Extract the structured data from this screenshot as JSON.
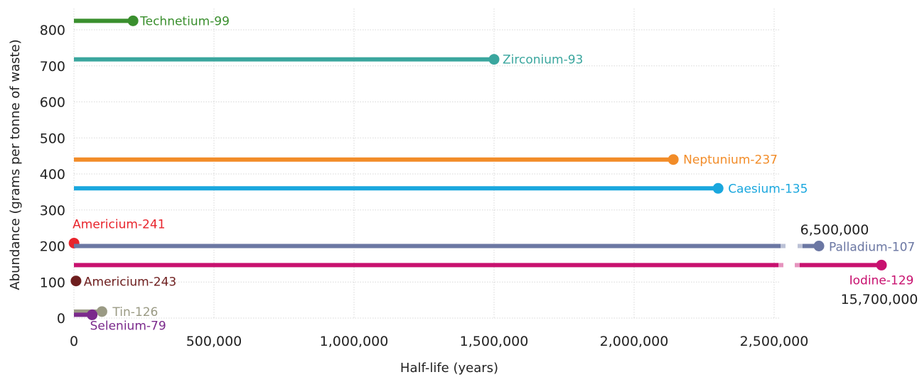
{
  "chart_data": {
    "type": "lollipop",
    "xlabel": "Half-life (years)",
    "ylabel": "Abundance (grams per tonne of waste)",
    "xlim": [
      0,
      2550000
    ],
    "ylim": [
      0,
      850
    ],
    "xticks": [
      0,
      500000,
      1000000,
      1500000,
      2000000,
      2500000
    ],
    "xtick_labels": [
      "0",
      "500,000",
      "1,000,000",
      "1,500,000",
      "2,000,000",
      "2,500,000"
    ],
    "yticks": [
      0,
      100,
      200,
      300,
      400,
      500,
      600,
      700,
      800
    ],
    "grid": true,
    "series": [
      {
        "name": "Technetium-99",
        "half_life": 211000,
        "abundance": 825,
        "color": "#3a8f2e"
      },
      {
        "name": "Zirconium-93",
        "half_life": 1500000,
        "abundance": 718,
        "color": "#3aa69e"
      },
      {
        "name": "Neptunium-237",
        "half_life": 2140000,
        "abundance": 440,
        "color": "#f28c28"
      },
      {
        "name": "Caesium-135",
        "half_life": 2300000,
        "abundance": 360,
        "color": "#1aa7de"
      },
      {
        "name": "Americium-241",
        "half_life": 432,
        "abundance": 208,
        "color": "#e8242c"
      },
      {
        "name": "Palladium-107",
        "half_life": 6500000,
        "half_life_label": "6,500,000",
        "abundance": 200,
        "color": "#6b77a3"
      },
      {
        "name": "Iodine-129",
        "half_life": 15700000,
        "half_life_label": "15,700,000",
        "abundance": 147,
        "color": "#c8116f"
      },
      {
        "name": "Americium-243",
        "half_life": 7370,
        "abundance": 103,
        "color": "#6e1e1e"
      },
      {
        "name": "Tin-126",
        "half_life": 100000,
        "abundance": 18,
        "color": "#9a9a84"
      },
      {
        "name": "Selenium-79",
        "half_life": 65000,
        "abundance": 9,
        "color": "#7b2a8c"
      }
    ]
  }
}
